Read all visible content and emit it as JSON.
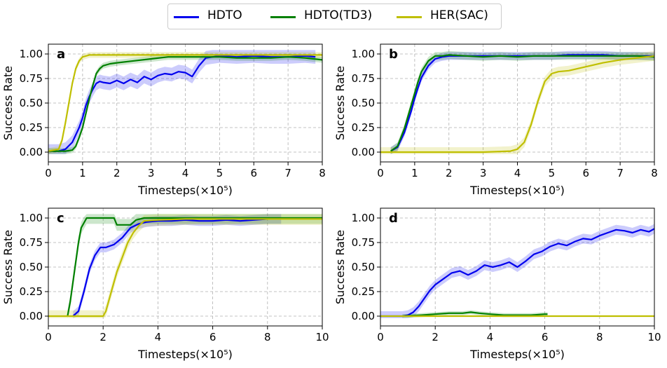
{
  "legend": [
    {
      "name": "HDTO",
      "color": "#0000ee"
    },
    {
      "name": "HDTO(TD3)",
      "color": "#008000"
    },
    {
      "name": "HER(SAC)",
      "color": "#bfbf00"
    }
  ],
  "chart_data": [
    {
      "type": "line",
      "panel_label": "a",
      "xlabel": "Timesteps(×10⁵)",
      "ylabel": "Success Rate",
      "xlim": [
        0,
        8
      ],
      "ylim": [
        -0.1,
        1.1
      ],
      "xticks": [
        "0",
        "1",
        "2",
        "3",
        "4",
        "5",
        "6",
        "7",
        "8"
      ],
      "yticks": [
        "0.00",
        "0.25",
        "0.50",
        "0.75",
        "1.00"
      ],
      "grid": true,
      "series": [
        {
          "name": "HDTO",
          "color": "#0000ee",
          "band": 0.07,
          "x": [
            0,
            0.3,
            0.5,
            0.7,
            0.9,
            1.0,
            1.1,
            1.2,
            1.3,
            1.4,
            1.5,
            1.6,
            1.8,
            2.0,
            2.2,
            2.4,
            2.6,
            2.8,
            3.0,
            3.2,
            3.4,
            3.6,
            3.8,
            4.0,
            4.2,
            4.4,
            4.6,
            4.8,
            5.0,
            5.5,
            6.0,
            6.5,
            7.0,
            7.5,
            7.8
          ],
          "y": [
            0.01,
            0.01,
            0.03,
            0.1,
            0.25,
            0.35,
            0.48,
            0.57,
            0.64,
            0.7,
            0.72,
            0.71,
            0.7,
            0.73,
            0.7,
            0.74,
            0.71,
            0.77,
            0.74,
            0.78,
            0.8,
            0.79,
            0.82,
            0.81,
            0.77,
            0.88,
            0.96,
            0.97,
            0.98,
            0.97,
            0.98,
            0.97,
            0.97,
            0.98,
            0.97
          ]
        },
        {
          "name": "HDTO(TD3)",
          "color": "#008000",
          "band": 0.03,
          "x": [
            0,
            0.5,
            0.7,
            0.8,
            0.9,
            1.0,
            1.1,
            1.2,
            1.3,
            1.4,
            1.5,
            1.6,
            1.8,
            2.0,
            2.5,
            3.0,
            3.5,
            4.0,
            4.5,
            5.0,
            5.5,
            6.0,
            6.5,
            7.0,
            7.5,
            8.0
          ],
          "y": [
            0.01,
            0.01,
            0.02,
            0.06,
            0.15,
            0.25,
            0.4,
            0.55,
            0.68,
            0.8,
            0.85,
            0.88,
            0.9,
            0.91,
            0.93,
            0.95,
            0.97,
            0.97,
            0.97,
            0.97,
            0.96,
            0.96,
            0.96,
            0.97,
            0.96,
            0.94
          ]
        },
        {
          "name": "HER(SAC)",
          "color": "#bfbf00",
          "band": 0.03,
          "x": [
            0,
            0.3,
            0.4,
            0.5,
            0.6,
            0.7,
            0.8,
            0.9,
            1.0,
            1.1,
            1.2,
            1.4,
            1.6,
            2.0,
            3.0,
            4.0,
            5.0,
            6.0,
            7.0,
            8.0
          ],
          "y": [
            0.01,
            0.03,
            0.12,
            0.3,
            0.5,
            0.7,
            0.85,
            0.93,
            0.97,
            0.98,
            0.99,
            0.99,
            0.99,
            0.99,
            0.99,
            0.99,
            0.99,
            0.99,
            0.99,
            0.99
          ]
        }
      ]
    },
    {
      "type": "line",
      "panel_label": "b",
      "xlabel": "Timesteps(×10⁵)",
      "ylabel": "Success Rate",
      "xlim": [
        0,
        8
      ],
      "ylim": [
        -0.1,
        1.1
      ],
      "xticks": [
        "0",
        "1",
        "2",
        "3",
        "4",
        "5",
        "6",
        "7",
        "8"
      ],
      "yticks": [
        "0.00",
        "0.25",
        "0.50",
        "0.75",
        "1.00"
      ],
      "grid": true,
      "series": [
        {
          "name": "HDTO",
          "color": "#0000ee",
          "band": 0.04,
          "x": [
            0.3,
            0.5,
            0.7,
            0.9,
            1.0,
            1.1,
            1.2,
            1.4,
            1.6,
            1.8,
            2.0,
            2.5,
            3.0,
            3.5,
            4.0,
            4.5,
            5.0,
            5.5,
            6.0,
            6.5,
            7.0,
            7.5,
            8.0
          ],
          "y": [
            0.01,
            0.05,
            0.2,
            0.42,
            0.55,
            0.66,
            0.76,
            0.88,
            0.95,
            0.97,
            0.98,
            0.98,
            0.98,
            0.98,
            0.98,
            0.98,
            0.98,
            0.99,
            0.99,
            0.99,
            0.98,
            0.98,
            0.98
          ]
        },
        {
          "name": "HDTO(TD3)",
          "color": "#008000",
          "band": 0.04,
          "x": [
            0.3,
            0.5,
            0.7,
            0.9,
            1.0,
            1.1,
            1.2,
            1.4,
            1.6,
            1.8,
            2.0,
            2.5,
            3.0,
            3.5,
            4.0,
            4.5,
            5.0,
            5.5,
            6.0,
            6.5,
            7.0,
            7.5,
            8.0
          ],
          "y": [
            0.01,
            0.06,
            0.24,
            0.48,
            0.6,
            0.72,
            0.82,
            0.93,
            0.98,
            0.98,
            0.99,
            0.98,
            0.97,
            0.98,
            0.97,
            0.98,
            0.98,
            0.98,
            0.98,
            0.98,
            0.98,
            0.98,
            0.97
          ]
        },
        {
          "name": "HER(SAC)",
          "color": "#bfbf00",
          "band": 0.05,
          "x": [
            0,
            1,
            2,
            3,
            3.8,
            4.0,
            4.2,
            4.4,
            4.6,
            4.8,
            5.0,
            5.2,
            5.5,
            6.0,
            6.5,
            7.0,
            7.5,
            8.0
          ],
          "y": [
            0,
            0,
            0,
            0,
            0.01,
            0.03,
            0.1,
            0.28,
            0.52,
            0.72,
            0.8,
            0.82,
            0.83,
            0.87,
            0.91,
            0.94,
            0.96,
            0.98
          ]
        }
      ]
    },
    {
      "type": "line",
      "panel_label": "c",
      "xlabel": "Timesteps(×10⁵)",
      "ylabel": "Success Rate",
      "xlim": [
        0,
        10
      ],
      "ylim": [
        -0.1,
        1.1
      ],
      "xticks": [
        "0",
        "2",
        "4",
        "6",
        "8",
        "10"
      ],
      "yticks": [
        "0.00",
        "0.25",
        "0.50",
        "0.75",
        "1.00"
      ],
      "grid": true,
      "series": [
        {
          "name": "HDTO",
          "color": "#0000ee",
          "band": 0.05,
          "x": [
            0.9,
            1.1,
            1.3,
            1.5,
            1.7,
            1.9,
            2.1,
            2.4,
            2.7,
            3.0,
            3.3,
            3.6,
            4.0,
            4.5,
            5.0,
            5.5,
            6.0,
            6.5,
            7.0,
            7.5,
            8.0,
            8.5
          ],
          "y": [
            0.0,
            0.05,
            0.25,
            0.48,
            0.62,
            0.7,
            0.7,
            0.73,
            0.8,
            0.9,
            0.94,
            0.96,
            0.97,
            0.97,
            0.98,
            0.97,
            0.97,
            0.98,
            0.97,
            0.98,
            0.99,
            0.99
          ]
        },
        {
          "name": "HDTO(TD3)",
          "color": "#008000",
          "band": 0.06,
          "x": [
            0.7,
            0.8,
            0.9,
            1.0,
            1.1,
            1.2,
            1.3,
            1.4,
            1.6,
            2.0,
            2.4,
            2.5,
            3.0,
            3.2,
            3.5,
            4.0,
            5.0,
            6.0,
            7.0,
            8.0,
            9.0,
            10.0
          ],
          "y": [
            0.0,
            0.15,
            0.35,
            0.55,
            0.75,
            0.9,
            0.95,
            1.0,
            1.0,
            1.0,
            1.0,
            0.93,
            0.93,
            0.98,
            1.0,
            1.0,
            1.0,
            1.0,
            1.0,
            1.0,
            1.0,
            1.0
          ]
        },
        {
          "name": "HER(SAC)",
          "color": "#bfbf00",
          "band": 0.06,
          "x": [
            0,
            1,
            2.0,
            2.1,
            2.3,
            2.5,
            2.7,
            2.9,
            3.1,
            3.3,
            3.5,
            4.0,
            5.0,
            6.0,
            7.0,
            8.0,
            9.0,
            10.0
          ],
          "y": [
            0,
            0,
            0,
            0.05,
            0.25,
            0.45,
            0.6,
            0.75,
            0.85,
            0.92,
            0.97,
            0.98,
            0.99,
            0.99,
            0.99,
            0.99,
            0.99,
            0.99
          ]
        }
      ]
    },
    {
      "type": "line",
      "panel_label": "d",
      "xlabel": "Timesteps(×10⁵)",
      "ylabel": "Success Rate",
      "xlim": [
        0,
        10
      ],
      "ylim": [
        -0.1,
        1.1
      ],
      "xticks": [
        "0",
        "2",
        "4",
        "6",
        "8",
        "10"
      ],
      "yticks": [
        "0.00",
        "0.25",
        "0.50",
        "0.75",
        "1.00"
      ],
      "grid": true,
      "series": [
        {
          "name": "HDTO",
          "color": "#0000ee",
          "band": 0.05,
          "x": [
            0,
            0.8,
            1.0,
            1.2,
            1.4,
            1.6,
            1.8,
            2.0,
            2.3,
            2.6,
            2.9,
            3.2,
            3.5,
            3.8,
            4.1,
            4.4,
            4.7,
            5.0,
            5.3,
            5.6,
            5.9,
            6.2,
            6.5,
            6.8,
            7.1,
            7.4,
            7.7,
            8.0,
            8.3,
            8.6,
            8.9,
            9.2,
            9.5,
            9.8,
            10.0
          ],
          "y": [
            0,
            0.0,
            0.01,
            0.04,
            0.1,
            0.18,
            0.26,
            0.32,
            0.38,
            0.44,
            0.46,
            0.42,
            0.46,
            0.52,
            0.5,
            0.52,
            0.55,
            0.5,
            0.56,
            0.63,
            0.66,
            0.71,
            0.74,
            0.72,
            0.76,
            0.79,
            0.78,
            0.82,
            0.85,
            0.88,
            0.87,
            0.85,
            0.88,
            0.86,
            0.89
          ]
        },
        {
          "name": "HDTO(TD3)",
          "color": "#008000",
          "band": 0.02,
          "x": [
            0.8,
            1.5,
            2.0,
            2.5,
            3.0,
            3.3,
            3.6,
            4.0,
            4.5,
            5.0,
            5.5,
            6.0,
            6.1
          ],
          "y": [
            0.0,
            0.01,
            0.02,
            0.03,
            0.03,
            0.04,
            0.03,
            0.02,
            0.01,
            0.01,
            0.01,
            0.02,
            0.02
          ]
        },
        {
          "name": "HER(SAC)",
          "color": "#bfbf00",
          "band": 0.0,
          "x": [
            0,
            2,
            4,
            6,
            8,
            10
          ],
          "y": [
            0,
            0,
            0,
            0,
            0,
            0
          ]
        }
      ]
    }
  ]
}
